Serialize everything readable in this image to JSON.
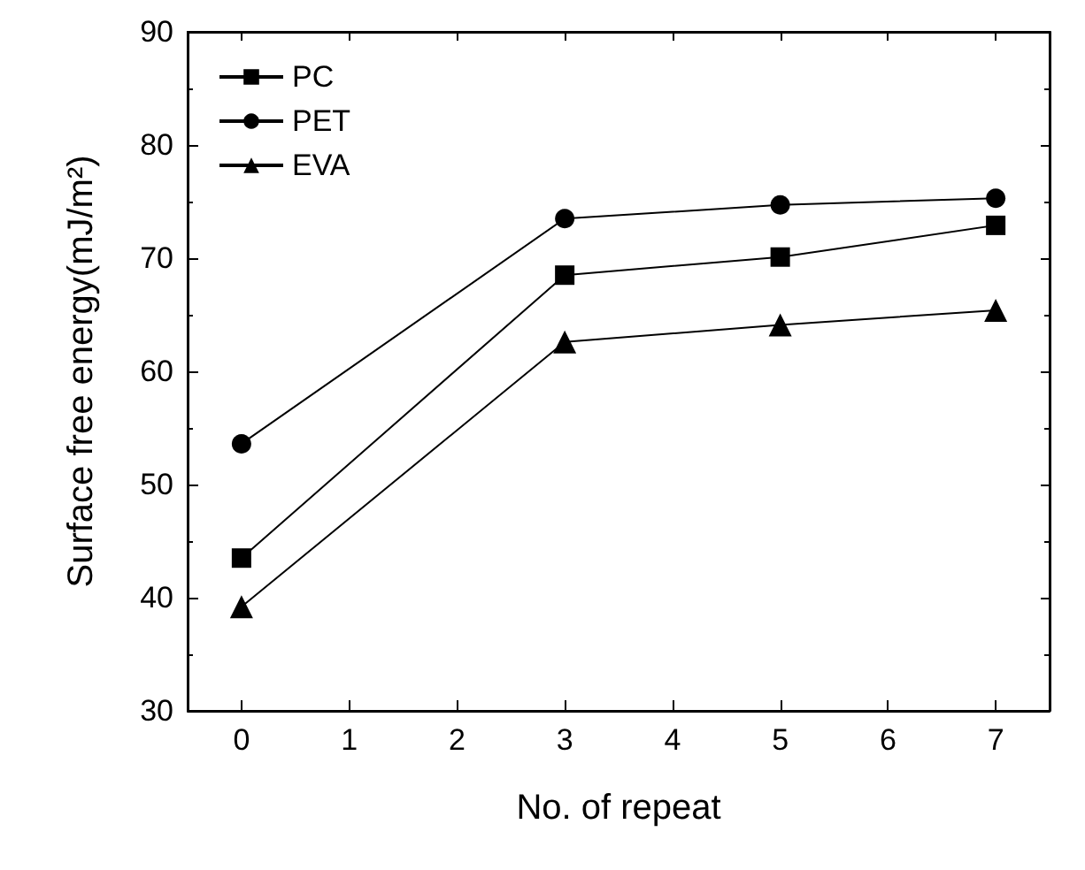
{
  "chart_data": {
    "type": "line",
    "xlabel": "No. of repeat",
    "ylabel": "Surface free energy(mJ/m²)",
    "xlim": [
      -0.5,
      7.5
    ],
    "xticks": [
      0,
      1,
      2,
      3,
      4,
      5,
      6,
      7
    ],
    "ylim": [
      30,
      90
    ],
    "yticks": [
      30,
      40,
      50,
      60,
      70,
      80,
      90
    ],
    "x": [
      0,
      3,
      5,
      7
    ],
    "grid": false,
    "legend": "top left",
    "line_style": "solid",
    "series": [
      {
        "name": "PC",
        "color": "#000000",
        "marker": "square",
        "values": [
          43.5,
          68.5,
          70.1,
          72.9
        ]
      },
      {
        "name": "PET",
        "color": "#000000",
        "marker": "circle",
        "values": [
          53.6,
          73.5,
          74.7,
          75.3
        ]
      },
      {
        "name": "EVA",
        "color": "#000000",
        "marker": "triangle",
        "values": [
          39.2,
          62.6,
          64.1,
          65.4
        ]
      }
    ]
  }
}
